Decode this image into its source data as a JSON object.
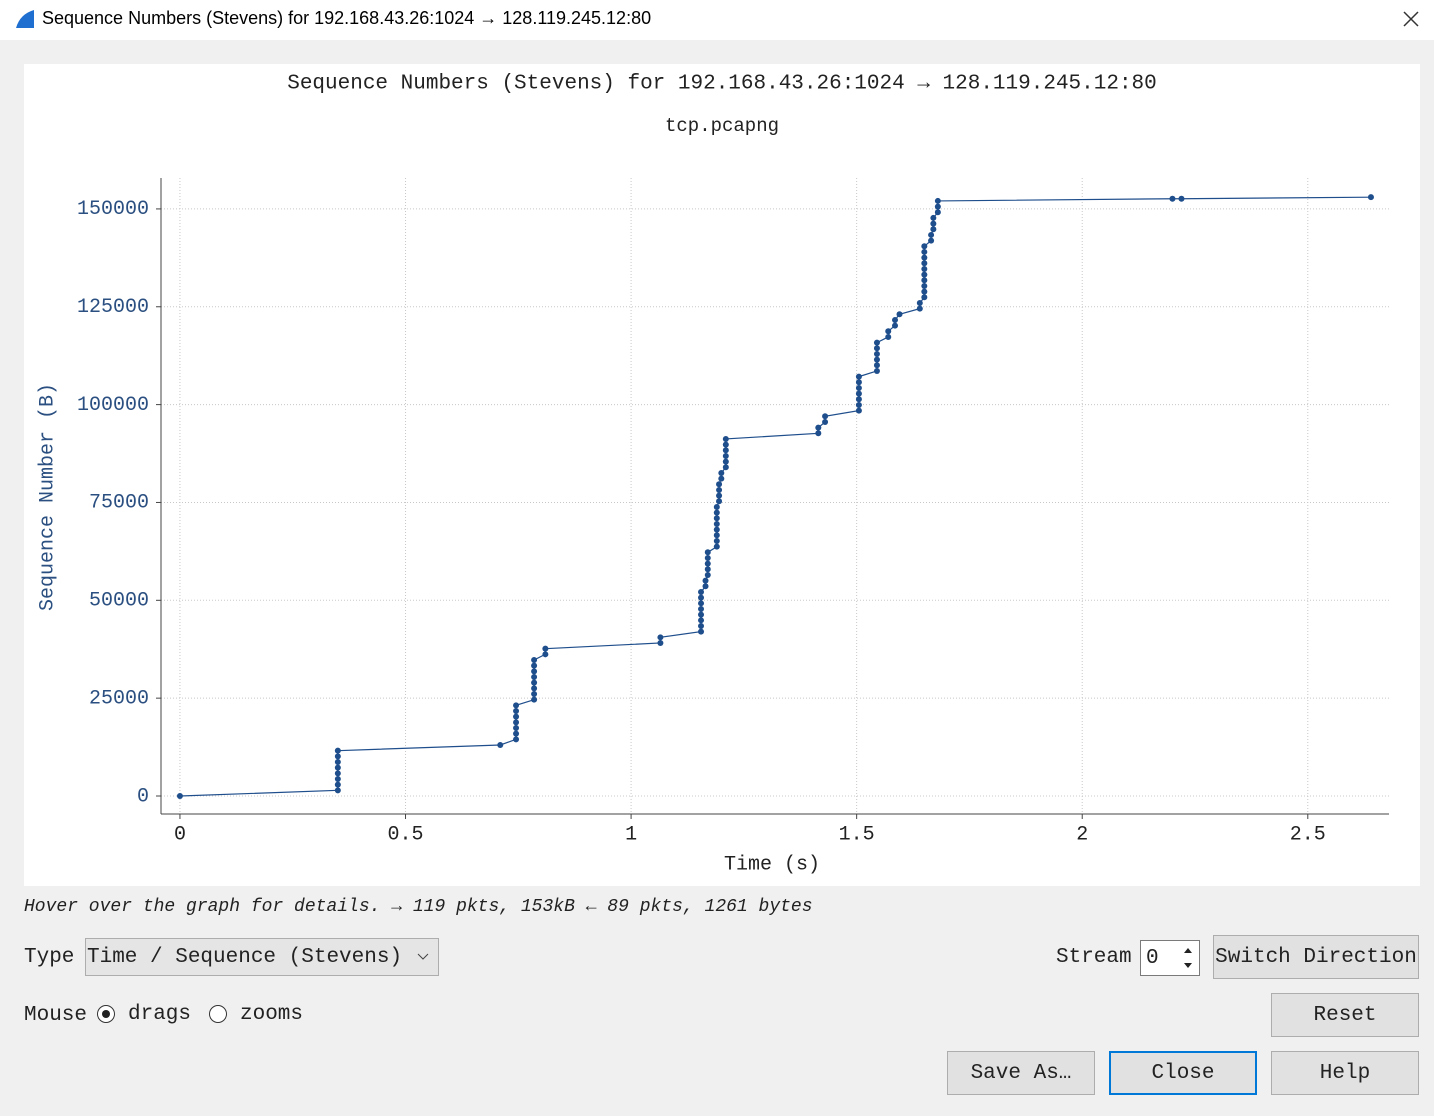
{
  "window": {
    "title": "Sequence Numbers (Stevens) for 192.168.43.26:1024 → 128.119.245.12:80"
  },
  "chart_data": {
    "type": "stevens",
    "title": "Sequence Numbers (Stevens) for 192.168.43.26:1024 → 128.119.245.12:80",
    "subtitle": "tcp.pcapng",
    "x_label": "Time (s)",
    "y_label": "Sequence Number (B)",
    "xlim": [
      -0.042,
      2.68
    ],
    "ylim": [
      -4600,
      157900
    ],
    "xticks": [
      0,
      0.5,
      1,
      1.5,
      2,
      2.5
    ],
    "yticks": [
      0,
      25000,
      50000,
      75000,
      100000,
      125000,
      150000
    ],
    "grid": true,
    "x": [
      0,
      0.35,
      0.35,
      0.35,
      0.35,
      0.35,
      0.35,
      0.35,
      0.35,
      0.71,
      0.745,
      0.745,
      0.745,
      0.745,
      0.745,
      0.745,
      0.745,
      0.785,
      0.785,
      0.785,
      0.785,
      0.785,
      0.785,
      0.785,
      0.785,
      0.81,
      0.81,
      1.065,
      1.065,
      1.155,
      1.155,
      1.155,
      1.155,
      1.155,
      1.155,
      1.155,
      1.155,
      1.165,
      1.165,
      1.17,
      1.17,
      1.17,
      1.17,
      1.17,
      1.19,
      1.19,
      1.19,
      1.19,
      1.19,
      1.19,
      1.19,
      1.19,
      1.195,
      1.195,
      1.195,
      1.195,
      1.2,
      1.2,
      1.21,
      1.21,
      1.21,
      1.21,
      1.21,
      1.21,
      1.415,
      1.415,
      1.43,
      1.43,
      1.505,
      1.505,
      1.505,
      1.505,
      1.505,
      1.505,
      1.505,
      1.545,
      1.545,
      1.545,
      1.545,
      1.545,
      1.545,
      1.57,
      1.57,
      1.585,
      1.585,
      1.595,
      1.64,
      1.64,
      1.65,
      1.65,
      1.65,
      1.65,
      1.65,
      1.65,
      1.65,
      1.65,
      1.65,
      1.65,
      1.665,
      1.665,
      1.67,
      1.67,
      1.67,
      1.68,
      1.68,
      1.68,
      2.2,
      2.22,
      2.64
    ],
    "series": [
      {
        "color": "#1f4e8c",
        "values": [
          0,
          1448,
          2896,
          4344,
          5792,
          7240,
          8688,
          10136,
          11584,
          13032,
          14480,
          15928,
          17376,
          18824,
          20272,
          21720,
          23168,
          24616,
          26064,
          27512,
          28960,
          30408,
          31856,
          33304,
          34752,
          36200,
          37648,
          39096,
          40544,
          42000,
          43440,
          44888,
          46336,
          47784,
          49232,
          50680,
          52128,
          53576,
          55024,
          56472,
          57920,
          59368,
          60816,
          62264,
          63712,
          65160,
          66608,
          68056,
          69504,
          70952,
          72400,
          73848,
          75296,
          76744,
          78192,
          79640,
          81088,
          82536,
          83984,
          85432,
          86880,
          88328,
          89776,
          91224,
          92672,
          94120,
          95568,
          97016,
          98464,
          99912,
          101360,
          102808,
          104256,
          105704,
          107152,
          108600,
          110048,
          111496,
          112944,
          114392,
          115840,
          117288,
          118736,
          120184,
          121632,
          123080,
          124528,
          125976,
          127424,
          128872,
          130320,
          131768,
          133216,
          134664,
          136112,
          137560,
          139008,
          140456,
          141904,
          143352,
          144800,
          146248,
          147696,
          149144,
          150592,
          152040,
          152600,
          152600,
          153000
        ]
      }
    ]
  },
  "status": "Hover over the graph for details. → 119 pkts, 153kB ← 89 pkts, 1261 bytes",
  "controls": {
    "type_label": "Type",
    "type_value": "Time / Sequence (Stevens)",
    "stream_label": "Stream",
    "stream_value": 0,
    "switch_direction": "Switch Direction",
    "mouse_label": "Mouse",
    "drags": "drags",
    "zooms": "zooms",
    "reset": "Reset",
    "save_as": "Save As…",
    "close": "Close",
    "help": "Help"
  }
}
